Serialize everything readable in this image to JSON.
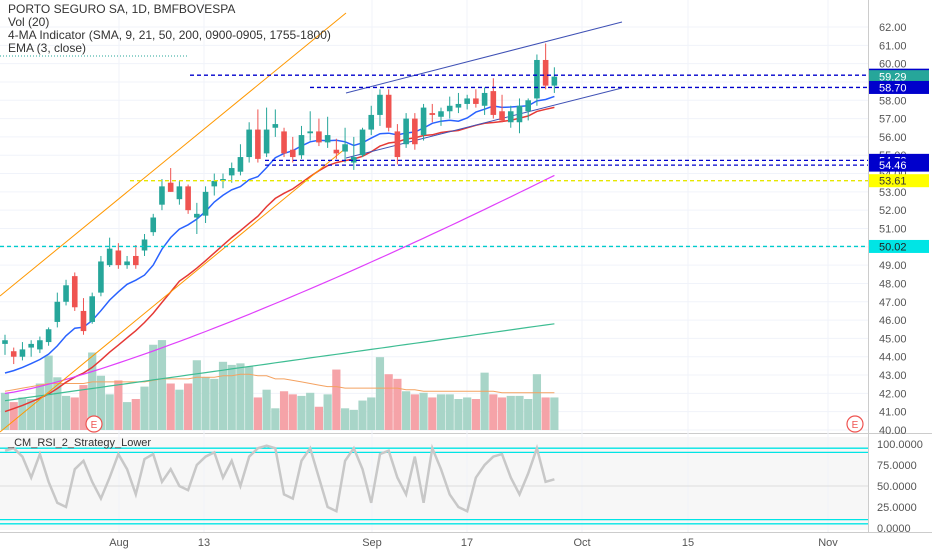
{
  "legend": {
    "title": "PORTO SEGURO SA, 1D, BMFBOVESPA",
    "volume": "Vol (20)",
    "ma": "4-MA Indicator (SMA, 9, 21, 50, 200, 0900-0905, 1755-1800)",
    "ema": "EMA (3, close)"
  },
  "rsi_title": "_CM_RSI_2_Strategy_Lower",
  "event_marker": "E",
  "colors": {
    "up": "#26a69a",
    "down": "#ef5350",
    "vol_up": "#a8d5c8",
    "vol_down": "#f5a3a8",
    "sma9": "#2962ff",
    "sma21": "#e53935",
    "sma50": "#e040fb",
    "sma200": "#3ebd93",
    "channel_orange": "#ff9800",
    "channel_blue": "#3f51b5",
    "level_blue": "#0000cc",
    "level_yellow": "#e6e600",
    "level_cyan": "#00cccc",
    "rsi_line": "#c8c8c8",
    "rsi_band": "#00e5e5"
  },
  "chart_data": {
    "type": "candlestick",
    "x_axis": {
      "tick_labels": [
        "Aug",
        "13",
        "Sep",
        "17",
        "Oct",
        "15",
        "Nov"
      ]
    },
    "y_axis": {
      "min": 40.0,
      "max": 62.0,
      "tick_labels": [
        "62.00",
        "61.00",
        "60.00",
        "59.00",
        "58.00",
        "57.00",
        "56.00",
        "55.00",
        "54.00",
        "53.00",
        "52.00",
        "51.00",
        "50.00",
        "49.00",
        "48.00",
        "47.00",
        "46.00",
        "45.00",
        "44.00",
        "43.00",
        "42.00",
        "41.00",
        "40.00"
      ],
      "tick_values": [
        62,
        61,
        60,
        59,
        58,
        57,
        56,
        55,
        54,
        53,
        52,
        51,
        50,
        49,
        48,
        47,
        46,
        45,
        44,
        43,
        42,
        41,
        40
      ]
    },
    "price_labels": [
      {
        "text": "59.37",
        "value": 59.37,
        "style": "blue"
      },
      {
        "text": "59.29",
        "value": 59.29,
        "style": "green"
      },
      {
        "text": "58.70",
        "value": 58.7,
        "style": "blue"
      },
      {
        "text": "54.72",
        "value": 54.72,
        "style": "blue"
      },
      {
        "text": "54.46",
        "value": 54.46,
        "style": "blue"
      },
      {
        "text": "53.61",
        "value": 53.61,
        "style": "yellow"
      },
      {
        "text": "50.02",
        "value": 50.02,
        "style": "cyan"
      }
    ],
    "candles": [
      {
        "o": 44.7,
        "h": 45.2,
        "l": 44.1,
        "c": 44.9
      },
      {
        "o": 44.3,
        "h": 44.5,
        "l": 43.6,
        "c": 44.0
      },
      {
        "o": 44.0,
        "h": 44.8,
        "l": 43.8,
        "c": 44.4
      },
      {
        "o": 44.5,
        "h": 44.9,
        "l": 44.0,
        "c": 44.7
      },
      {
        "o": 44.4,
        "h": 45.1,
        "l": 44.2,
        "c": 44.9
      },
      {
        "o": 44.8,
        "h": 45.6,
        "l": 44.6,
        "c": 45.5
      },
      {
        "o": 45.9,
        "h": 47.5,
        "l": 45.6,
        "c": 47.0
      },
      {
        "o": 47.0,
        "h": 48.2,
        "l": 46.8,
        "c": 47.9
      },
      {
        "o": 48.4,
        "h": 48.6,
        "l": 46.5,
        "c": 46.7
      },
      {
        "o": 46.5,
        "h": 47.2,
        "l": 45.2,
        "c": 45.4
      },
      {
        "o": 45.9,
        "h": 47.5,
        "l": 45.8,
        "c": 47.3
      },
      {
        "o": 47.5,
        "h": 49.5,
        "l": 47.3,
        "c": 49.2
      },
      {
        "o": 49.0,
        "h": 50.5,
        "l": 48.9,
        "c": 49.9
      },
      {
        "o": 49.8,
        "h": 50.2,
        "l": 48.8,
        "c": 49.0
      },
      {
        "o": 49.0,
        "h": 49.5,
        "l": 48.8,
        "c": 49.2
      },
      {
        "o": 49.5,
        "h": 50.1,
        "l": 48.8,
        "c": 49.0
      },
      {
        "o": 49.8,
        "h": 50.7,
        "l": 49.5,
        "c": 50.4
      },
      {
        "o": 50.8,
        "h": 51.8,
        "l": 50.6,
        "c": 51.6
      },
      {
        "o": 52.3,
        "h": 53.7,
        "l": 52.0,
        "c": 53.3
      },
      {
        "o": 53.5,
        "h": 54.3,
        "l": 53.0,
        "c": 53.0
      },
      {
        "o": 52.6,
        "h": 53.6,
        "l": 52.3,
        "c": 53.3
      },
      {
        "o": 53.3,
        "h": 53.4,
        "l": 51.8,
        "c": 52.0
      },
      {
        "o": 51.6,
        "h": 52.4,
        "l": 50.7,
        "c": 51.8
      },
      {
        "o": 51.7,
        "h": 53.3,
        "l": 51.3,
        "c": 53.0
      },
      {
        "o": 53.3,
        "h": 54.0,
        "l": 52.8,
        "c": 53.6
      },
      {
        "o": 53.6,
        "h": 54.0,
        "l": 53.2,
        "c": 53.7
      },
      {
        "o": 53.9,
        "h": 54.6,
        "l": 53.5,
        "c": 54.3
      },
      {
        "o": 54.1,
        "h": 55.6,
        "l": 53.9,
        "c": 54.9
      },
      {
        "o": 54.9,
        "h": 56.8,
        "l": 54.6,
        "c": 56.4
      },
      {
        "o": 56.4,
        "h": 57.5,
        "l": 54.6,
        "c": 54.8
      },
      {
        "o": 55.1,
        "h": 57.6,
        "l": 54.9,
        "c": 56.4
      },
      {
        "o": 56.5,
        "h": 57.5,
        "l": 56.0,
        "c": 56.7
      },
      {
        "o": 56.3,
        "h": 56.5,
        "l": 54.9,
        "c": 55.1
      },
      {
        "o": 55.3,
        "h": 56.0,
        "l": 54.6,
        "c": 54.9
      },
      {
        "o": 55.0,
        "h": 56.6,
        "l": 54.8,
        "c": 56.1
      },
      {
        "o": 56.2,
        "h": 57.4,
        "l": 55.8,
        "c": 56.3
      },
      {
        "o": 56.3,
        "h": 57.0,
        "l": 55.5,
        "c": 55.7
      },
      {
        "o": 55.7,
        "h": 57.1,
        "l": 55.4,
        "c": 56.1
      },
      {
        "o": 55.3,
        "h": 55.9,
        "l": 54.8,
        "c": 55.1
      },
      {
        "o": 55.2,
        "h": 56.5,
        "l": 54.6,
        "c": 55.6
      },
      {
        "o": 54.6,
        "h": 56.0,
        "l": 54.2,
        "c": 54.9
      },
      {
        "o": 55.0,
        "h": 56.5,
        "l": 54.9,
        "c": 56.4
      },
      {
        "o": 56.4,
        "h": 57.7,
        "l": 56.1,
        "c": 57.2
      },
      {
        "o": 57.2,
        "h": 58.6,
        "l": 56.6,
        "c": 58.3
      },
      {
        "o": 58.3,
        "h": 58.6,
        "l": 56.3,
        "c": 56.5
      },
      {
        "o": 56.3,
        "h": 56.7,
        "l": 54.5,
        "c": 54.9
      },
      {
        "o": 55.6,
        "h": 57.3,
        "l": 55.4,
        "c": 57.0
      },
      {
        "o": 57.0,
        "h": 57.3,
        "l": 55.3,
        "c": 55.6
      },
      {
        "o": 56.1,
        "h": 57.8,
        "l": 55.8,
        "c": 57.6
      },
      {
        "o": 57.3,
        "h": 57.8,
        "l": 56.8,
        "c": 57.2
      },
      {
        "o": 57.1,
        "h": 57.6,
        "l": 56.6,
        "c": 57.4
      },
      {
        "o": 57.4,
        "h": 58.2,
        "l": 57.0,
        "c": 57.7
      },
      {
        "o": 57.6,
        "h": 58.4,
        "l": 57.3,
        "c": 57.8
      },
      {
        "o": 57.8,
        "h": 58.3,
        "l": 57.5,
        "c": 58.1
      },
      {
        "o": 58.1,
        "h": 58.6,
        "l": 57.6,
        "c": 57.8
      },
      {
        "o": 57.7,
        "h": 58.7,
        "l": 57.2,
        "c": 58.4
      },
      {
        "o": 58.5,
        "h": 59.2,
        "l": 57.0,
        "c": 57.2
      },
      {
        "o": 57.4,
        "h": 58.3,
        "l": 56.8,
        "c": 56.9
      },
      {
        "o": 56.8,
        "h": 57.7,
        "l": 56.5,
        "c": 57.4
      },
      {
        "o": 56.8,
        "h": 58.1,
        "l": 56.2,
        "c": 57.7
      },
      {
        "o": 57.4,
        "h": 58.1,
        "l": 56.9,
        "c": 58.0
      },
      {
        "o": 58.1,
        "h": 60.5,
        "l": 57.7,
        "c": 60.2
      },
      {
        "o": 60.2,
        "h": 61.1,
        "l": 58.6,
        "c": 58.8
      },
      {
        "o": 58.8,
        "h": 59.8,
        "l": 58.4,
        "c": 59.29
      }
    ],
    "volumes": [
      2.4,
      1.8,
      2.1,
      2.0,
      3.0,
      4.8,
      3.4,
      2.2,
      2.1,
      2.9,
      5.0,
      3.5,
      2.3,
      3.2,
      1.8,
      2.0,
      2.8,
      5.5,
      5.8,
      3.0,
      2.6,
      3.0,
      4.5,
      3.4,
      3.3,
      4.4,
      4.2,
      4.3,
      4.1,
      2.1,
      2.6,
      1.4,
      2.5,
      2.3,
      2.2,
      2.4,
      1.5,
      2.3,
      3.9,
      1.4,
      1.3,
      1.9,
      2.1,
      4.7,
      3.6,
      3.3,
      2.5,
      2.3,
      2.4,
      2.1,
      2.3,
      2.3,
      2.0,
      2.1,
      2.0,
      3.7,
      2.3,
      2.1,
      2.2,
      2.2,
      2.0,
      3.6,
      2.1,
      2.1
    ],
    "volume_sma": [
      2.5,
      2.6,
      2.7,
      2.8,
      2.9,
      3.0,
      3.0,
      3.0,
      3.0,
      3.0,
      3.1,
      3.1,
      3.1,
      3.1,
      3.1,
      3.1,
      3.1,
      3.2,
      3.3,
      3.3,
      3.3,
      3.3,
      3.4,
      3.4,
      3.4,
      3.5,
      3.5,
      3.6,
      3.6,
      3.5,
      3.5,
      3.3,
      3.3,
      3.2,
      3.1,
      3.0,
      2.9,
      2.8,
      2.8,
      2.7,
      2.7,
      2.7,
      2.7,
      2.7,
      2.7,
      2.7,
      2.6,
      2.6,
      2.5,
      2.5,
      2.5,
      2.5,
      2.5,
      2.5,
      2.5,
      2.5,
      2.5,
      2.4,
      2.4,
      2.4,
      2.4,
      2.4,
      2.4,
      2.4
    ],
    "rsi": [
      92,
      95,
      85,
      60,
      88,
      55,
      30,
      25,
      70,
      80,
      55,
      35,
      60,
      88,
      70,
      40,
      82,
      88,
      55,
      70,
      50,
      45,
      75,
      85,
      90,
      60,
      80,
      50,
      85,
      95,
      98,
      95,
      40,
      35,
      80,
      95,
      60,
      25,
      20,
      80,
      95,
      70,
      30,
      88,
      92,
      60,
      40,
      85,
      30,
      95,
      70,
      40,
      25,
      20,
      60,
      75,
      85,
      88,
      60,
      40,
      65,
      95,
      55,
      58
    ],
    "rsi_axis": {
      "min": 0,
      "max": 100,
      "tick_labels": [
        "100.0000",
        "75.0000",
        "50.0000",
        "25.0000",
        "0.0000"
      ],
      "tick_values": [
        100,
        75,
        50,
        25,
        0
      ],
      "bands": [
        95,
        90,
        10,
        5
      ]
    }
  }
}
